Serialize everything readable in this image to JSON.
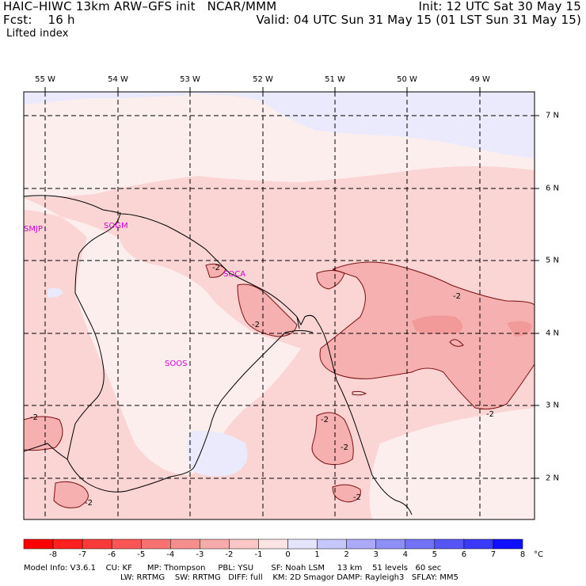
{
  "header": {
    "line1_left": "HAIC–HIWC 13km ARW–GFS init   NCAR/MMM",
    "line2_left": "Fcst:    16 h",
    "line1_right": "Init: 12 UTC Sat 30 May 15",
    "line2_right": "Valid: 04 UTC Sun 31 May 15 (01 LST Sun 31 May 15)",
    "field": "Lifted index"
  },
  "map": {
    "lon_labels": [
      "55 W",
      "54 W",
      "53 W",
      "52 W",
      "51 W",
      "50 W",
      "49 W"
    ],
    "lat_labels": [
      "7 N",
      "6 N",
      "5 N",
      "4 N",
      "3 N",
      "2 N"
    ],
    "contour_label": "-2",
    "stations": [
      {
        "id": "SMJP"
      },
      {
        "id": "SOGM"
      },
      {
        "id": "SOCA"
      },
      {
        "id": "SOOS"
      }
    ],
    "colors": {
      "very_light_blue": "#eaeafc",
      "very_light_pink": "#fdeeee",
      "light_pink": "#fbd4d4",
      "pink": "#f6b0b0",
      "boundary": "#000000",
      "contour": "#7a1010"
    }
  },
  "colorbar": {
    "ticks": [
      "-8",
      "-7",
      "-6",
      "-5",
      "-4",
      "-3",
      "-2",
      "-1",
      "0",
      "1",
      "2",
      "3",
      "4",
      "5",
      "6",
      "7",
      "8",
      "°C"
    ],
    "colors": [
      "#ff0000",
      "#ff2020",
      "#fd3a3a",
      "#fb5656",
      "#f97272",
      "#f78e8e",
      "#f6aaaa",
      "#fbc6c6",
      "#fde4e4",
      "#e4e4fc",
      "#c6c6fa",
      "#aaaaf8",
      "#8e8ef7",
      "#7272f6",
      "#5656f5",
      "#3a3af8",
      "#1010ff"
    ]
  },
  "footer": {
    "line1": "Model Info: V3.6.1    CU: KF      MP: Thompson     PBL: YSU       SF: Noah LSM     13 km    51 levels   60 sec",
    "line2": "LW: RRTMG    SW: RRTMG   DIFF: full    KM: 2D Smagor DAMP: Rayleigh3   SFLAY: MM5"
  }
}
